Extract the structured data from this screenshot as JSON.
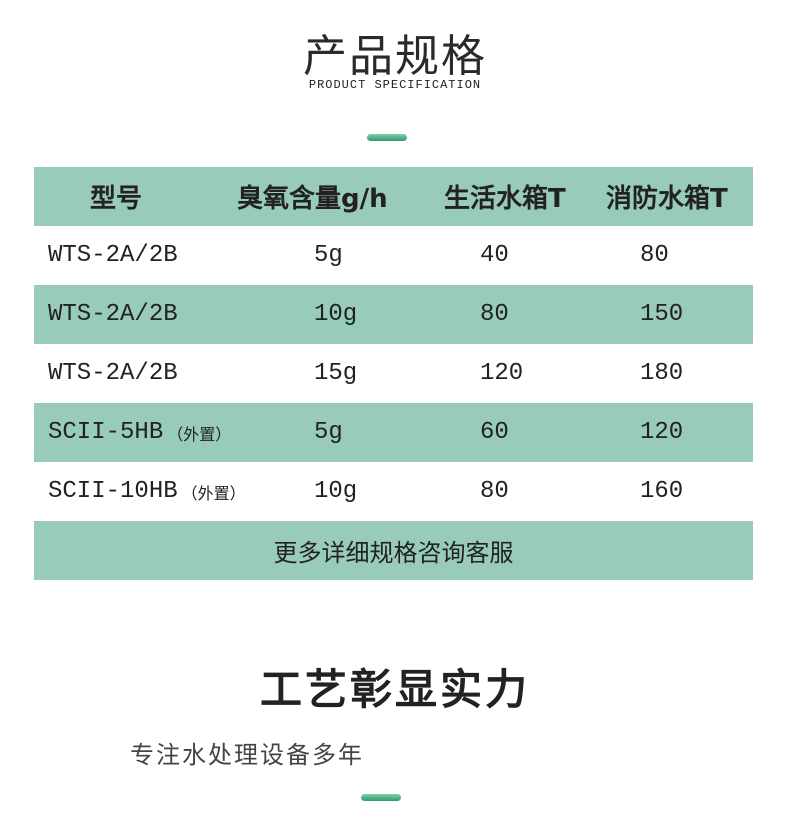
{
  "header": {
    "title": "产品规格",
    "subtitle": "PRODUCT SPECIFICATION"
  },
  "table": {
    "columns": [
      "型号",
      "臭氧含量g/h",
      "生活水箱T",
      "消防水箱T"
    ],
    "rows": [
      {
        "model": "WTS-2A/2B",
        "note": "",
        "ozone": "5g",
        "living": "40",
        "fire": "80"
      },
      {
        "model": "WTS-2A/2B",
        "note": "",
        "ozone": "10g",
        "living": "80",
        "fire": "150"
      },
      {
        "model": "WTS-2A/2B",
        "note": "",
        "ozone": "15g",
        "living": "120",
        "fire": "180"
      },
      {
        "model": "SCII-5HB",
        "note": "（外置）",
        "ozone": "5g",
        "living": "60",
        "fire": "120"
      },
      {
        "model": "SCII-10HB",
        "note": "（外置）",
        "ozone": "10g",
        "living": "80",
        "fire": "160"
      }
    ],
    "footer": "更多详细规格咨询客服"
  },
  "section2": {
    "title": "工艺彰显实力",
    "subtitle": "专注水处理设备多年"
  },
  "colors": {
    "teal": "#98cbb9",
    "accent": "#2f9a6f"
  }
}
